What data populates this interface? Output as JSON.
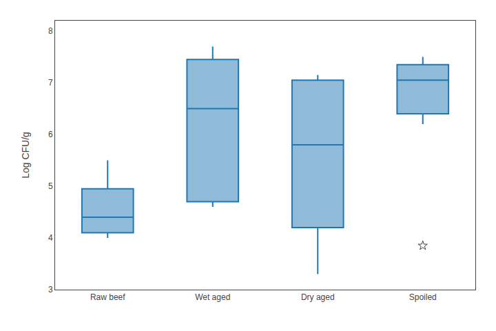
{
  "chart_data": {
    "type": "box",
    "categories": [
      "Raw beef",
      "Wet aged",
      "Dry aged",
      "Spoiled"
    ],
    "boxes": [
      {
        "q1": 4.1,
        "median": 4.4,
        "q3": 4.95,
        "whislo": 4.0,
        "whishi": 5.5,
        "fliers": []
      },
      {
        "q1": 4.7,
        "median": 6.5,
        "q3": 7.45,
        "whislo": 4.6,
        "whishi": 7.7,
        "fliers": []
      },
      {
        "q1": 4.2,
        "median": 5.8,
        "q3": 7.05,
        "whislo": 3.3,
        "whishi": 7.15,
        "fliers": []
      },
      {
        "q1": 6.4,
        "median": 7.05,
        "q3": 7.35,
        "whislo": 6.2,
        "whishi": 7.5,
        "fliers": [
          3.85
        ]
      }
    ],
    "marker": "star",
    "ylabel": "Log CFU/g",
    "ylim": [
      3.0,
      8.2
    ],
    "yticks": [
      3,
      4,
      5,
      6,
      7,
      8
    ],
    "grid": false
  }
}
